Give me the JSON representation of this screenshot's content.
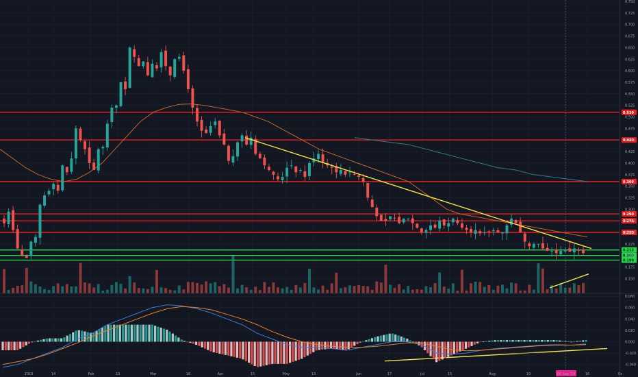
{
  "chart_data": [
    {
      "type": "candlestick",
      "title": "",
      "xlabel": "",
      "ylabel": "",
      "ylim": [
        0.115,
        0.75
      ],
      "y_ticks": [
        0.15,
        0.175,
        0.2,
        0.225,
        0.25,
        0.275,
        0.3,
        0.325,
        0.35,
        0.375,
        0.4,
        0.425,
        0.45,
        0.475,
        0.5,
        0.525,
        0.55,
        0.575,
        0.6,
        0.625,
        0.65,
        0.675,
        0.7,
        0.725,
        0.75
      ],
      "x_tick_labels": [
        "2019",
        "14",
        "Feb",
        "13",
        "Mar",
        "18",
        "Apr",
        "15",
        "May",
        "13",
        "Jun",
        "17",
        "Jul",
        "15",
        "Aug",
        "19",
        "06 Sep '19",
        "16",
        "Oc"
      ],
      "series": [
        {
          "type": "candles",
          "values": [
            0.27,
            0.295,
            0.255,
            0.215,
            0.2,
            0.195,
            0.23,
            0.24,
            0.31,
            0.33,
            0.34,
            0.355,
            0.34,
            0.395,
            0.38,
            0.41,
            0.475,
            0.45,
            0.43,
            0.4,
            0.385,
            0.43,
            0.435,
            0.485,
            0.52,
            0.525,
            0.575,
            0.56,
            0.65,
            0.63,
            0.61,
            0.62,
            0.59,
            0.615,
            0.605,
            0.64,
            0.61,
            0.59,
            0.625,
            0.63,
            0.6,
            0.56,
            0.52,
            0.49,
            0.47,
            0.465,
            0.48,
            0.49,
            0.46,
            0.44,
            0.405,
            0.415,
            0.445,
            0.46,
            0.44,
            0.455,
            0.42,
            0.41,
            0.395,
            0.385,
            0.375,
            0.365,
            0.37,
            0.39,
            0.395,
            0.38,
            0.385,
            0.37,
            0.4,
            0.41,
            0.42,
            0.4,
            0.395,
            0.39,
            0.38,
            0.385,
            0.375,
            0.38,
            0.375,
            0.37,
            0.36,
            0.325,
            0.305,
            0.285,
            0.275,
            0.275,
            0.285,
            0.28,
            0.27,
            0.28,
            0.28,
            0.27,
            0.26,
            0.25,
            0.255,
            0.265,
            0.26,
            0.275,
            0.265,
            0.27,
            0.28,
            0.27,
            0.26,
            0.255,
            0.25,
            0.255,
            0.248,
            0.25,
            0.252,
            0.255,
            0.25,
            0.25,
            0.265,
            0.28,
            0.27,
            0.25,
            0.23,
            0.22,
            0.225,
            0.225,
            0.215,
            0.21,
            0.21,
            0.205,
            0.21,
            0.212,
            0.208,
            0.215,
            0.21,
            0.205
          ]
        }
      ],
      "price_levels": [
        {
          "label": "0.510",
          "value": 0.51,
          "color": "#e91e1e"
        },
        {
          "label": "0.450",
          "value": 0.45,
          "color": "#e91e1e"
        },
        {
          "label": "0.360",
          "value": 0.36,
          "color": "#e91e1e"
        },
        {
          "label": "0.290",
          "value": 0.29,
          "color": "#e91e1e"
        },
        {
          "label": "0.275",
          "value": 0.275,
          "color": "#e91e1e"
        },
        {
          "label": "0.250",
          "value": 0.25,
          "color": "#e91e1e"
        },
        {
          "label": "0.212",
          "value": 0.212,
          "color": "#26d84d"
        },
        {
          "label": "0.200",
          "value": 0.2,
          "color": "#26d84d"
        },
        {
          "label": "0.190",
          "value": 0.19,
          "color": "#26d84d"
        }
      ],
      "ma_orange": [
        0.43,
        0.41,
        0.39,
        0.375,
        0.365,
        0.36,
        0.365,
        0.38,
        0.4,
        0.43,
        0.46,
        0.49,
        0.51,
        0.52,
        0.527,
        0.528,
        0.525,
        0.52,
        0.515,
        0.51,
        0.5,
        0.49,
        0.475,
        0.46,
        0.445,
        0.43,
        0.42,
        0.41,
        0.4,
        0.39,
        0.38,
        0.37,
        0.36,
        0.34,
        0.32,
        0.3,
        0.29,
        0.285,
        0.28,
        0.275,
        0.27,
        0.265,
        0.26,
        0.255,
        0.25,
        0.245,
        0.24
      ],
      "ma_teal": [
        0.455,
        0.45,
        0.445,
        0.44,
        0.43,
        0.42,
        0.41,
        0.4,
        0.39,
        0.385,
        0.375,
        0.37,
        0.365,
        0.36
      ],
      "trendline_top": [
        0.455,
        0.215
      ],
      "trendline_vol": [
        0.13,
        0.16
      ],
      "trendline_macd": [
        -0.034,
        -0.012
      ],
      "volume_ticks": [],
      "macd": {
        "y_ticks": [
          0.08,
          0.06,
          0.04,
          0.02,
          0.0,
          -0.02,
          -0.04
        ],
        "ylim": [
          -0.05,
          0.085
        ],
        "macd_line": [
          -0.045,
          -0.04,
          -0.03,
          -0.02,
          -0.01,
          0.005,
          0.015,
          0.03,
          0.04,
          0.05,
          0.06,
          0.065,
          0.063,
          0.058,
          0.05,
          0.04,
          0.03,
          0.015,
          0.005,
          -0.005,
          -0.01,
          -0.01,
          -0.012,
          -0.015,
          -0.01,
          -0.005,
          0.0,
          0.0,
          -0.005,
          -0.02,
          -0.022,
          -0.02,
          -0.015,
          -0.012,
          -0.01,
          -0.008,
          -0.006,
          -0.005,
          -0.006,
          -0.004
        ],
        "signal_line": [
          -0.04,
          -0.035,
          -0.03,
          -0.022,
          -0.012,
          -0.002,
          0.01,
          0.02,
          0.03,
          0.04,
          0.05,
          0.058,
          0.062,
          0.06,
          0.056,
          0.048,
          0.04,
          0.03,
          0.018,
          0.008,
          0.0,
          -0.005,
          -0.008,
          -0.01,
          -0.01,
          -0.008,
          -0.005,
          -0.002,
          -0.002,
          -0.008,
          -0.014,
          -0.016,
          -0.015,
          -0.013,
          -0.011,
          -0.009,
          -0.007,
          -0.006,
          -0.006,
          -0.005
        ]
      }
    }
  ],
  "colors": {
    "bg": "#131722",
    "up": "#26a69a",
    "down": "#ef5350",
    "grid": "#1f2430",
    "ma_orange": "#c2652c",
    "ma_teal": "#2f7e8a",
    "trend": "#f5e642",
    "red_level": "#e91e1e",
    "green_level": "#26d84d",
    "date_tag": "#e91e8c",
    "macd_up": "#26a69a",
    "macd_down": "#ef5350",
    "macd_line": "#3d7bd6",
    "signal_line": "#e8812c"
  }
}
